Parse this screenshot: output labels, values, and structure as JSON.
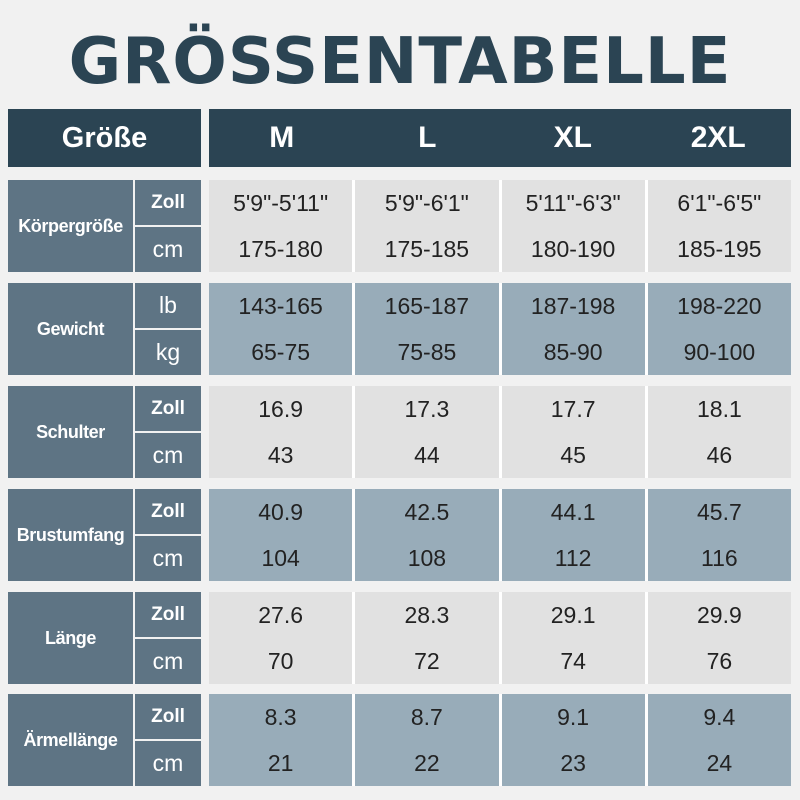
{
  "title": "GRÖSSENTABELLE",
  "header": {
    "label": "Größe",
    "sizes": [
      "M",
      "L",
      "XL",
      "2XL"
    ]
  },
  "rows": [
    {
      "category": "Körpergröße",
      "units": [
        "Zoll",
        "cm"
      ],
      "values": [
        [
          "5'9\"-5'11\"",
          "175-180"
        ],
        [
          "5'9\"-6'1\"",
          "175-185"
        ],
        [
          "5'11\"-6'3\"",
          "180-190"
        ],
        [
          "6'1\"-6'5\"",
          "185-195"
        ]
      ]
    },
    {
      "category": "Gewicht",
      "units": [
        "lb",
        "kg"
      ],
      "values": [
        [
          "143-165",
          "65-75"
        ],
        [
          "165-187",
          "75-85"
        ],
        [
          "187-198",
          "85-90"
        ],
        [
          "198-220",
          "90-100"
        ]
      ]
    },
    {
      "category": "Schulter",
      "units": [
        "Zoll",
        "cm"
      ],
      "values": [
        [
          "16.9",
          "43"
        ],
        [
          "17.3",
          "44"
        ],
        [
          "17.7",
          "45"
        ],
        [
          "18.1",
          "46"
        ]
      ]
    },
    {
      "category": "Brustumfang",
      "units": [
        "Zoll",
        "cm"
      ],
      "values": [
        [
          "40.9",
          "104"
        ],
        [
          "42.5",
          "108"
        ],
        [
          "44.1",
          "112"
        ],
        [
          "45.7",
          "116"
        ]
      ]
    },
    {
      "category": "Länge",
      "units": [
        "Zoll",
        "cm"
      ],
      "values": [
        [
          "27.6",
          "70"
        ],
        [
          "28.3",
          "72"
        ],
        [
          "29.1",
          "74"
        ],
        [
          "29.9",
          "76"
        ]
      ]
    },
    {
      "category": "Ärmellänge",
      "units": [
        "Zoll",
        "cm"
      ],
      "values": [
        [
          "8.3",
          "21"
        ],
        [
          "8.7",
          "22"
        ],
        [
          "9.1",
          "23"
        ],
        [
          "9.4",
          "24"
        ]
      ]
    }
  ],
  "colors": {
    "header_bg": "#2b4453",
    "label_bg": "#5e7484",
    "row_light": "#e1e1e1",
    "row_blue": "#98acb9"
  }
}
